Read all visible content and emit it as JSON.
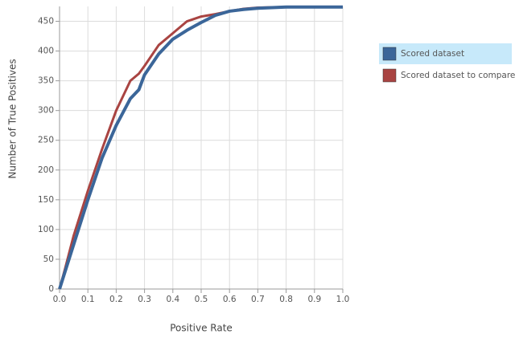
{
  "chart_data": {
    "type": "line",
    "x_label": "Positive Rate",
    "y_label": "Number of True Positives",
    "x": [
      0,
      0.02,
      0.05,
      0.1,
      0.15,
      0.2,
      0.25,
      0.28,
      0.3,
      0.35,
      0.4,
      0.45,
      0.5,
      0.55,
      0.6,
      0.65,
      0.7,
      0.8,
      0.9,
      1.0
    ],
    "series": [
      {
        "name": "Scored dataset",
        "color": "#3b6699",
        "values": [
          0,
          30,
          75,
          150,
          220,
          275,
          320,
          335,
          360,
          395,
          420,
          435,
          448,
          460,
          467,
          470,
          472,
          474,
          474,
          474
        ]
      },
      {
        "name": "Scored dataset to compare",
        "color": "#a94442",
        "values": [
          0,
          35,
          90,
          165,
          235,
          300,
          350,
          362,
          375,
          410,
          430,
          450,
          458,
          462,
          467,
          471,
          473,
          474,
          474,
          474
        ]
      }
    ],
    "xlim": [
      0,
      1
    ],
    "ylim": [
      0,
      475
    ],
    "xticks": [
      {
        "value": 0,
        "label": "0.0"
      },
      0.1,
      0.2,
      0.3,
      0.4,
      0.5,
      0.6,
      0.7,
      0.8,
      0.9,
      {
        "value": 1,
        "label": "1.0"
      }
    ],
    "yticks": [
      0,
      50,
      100,
      150,
      200,
      250,
      300,
      350,
      400,
      450
    ],
    "grid": true,
    "legend": "right"
  }
}
